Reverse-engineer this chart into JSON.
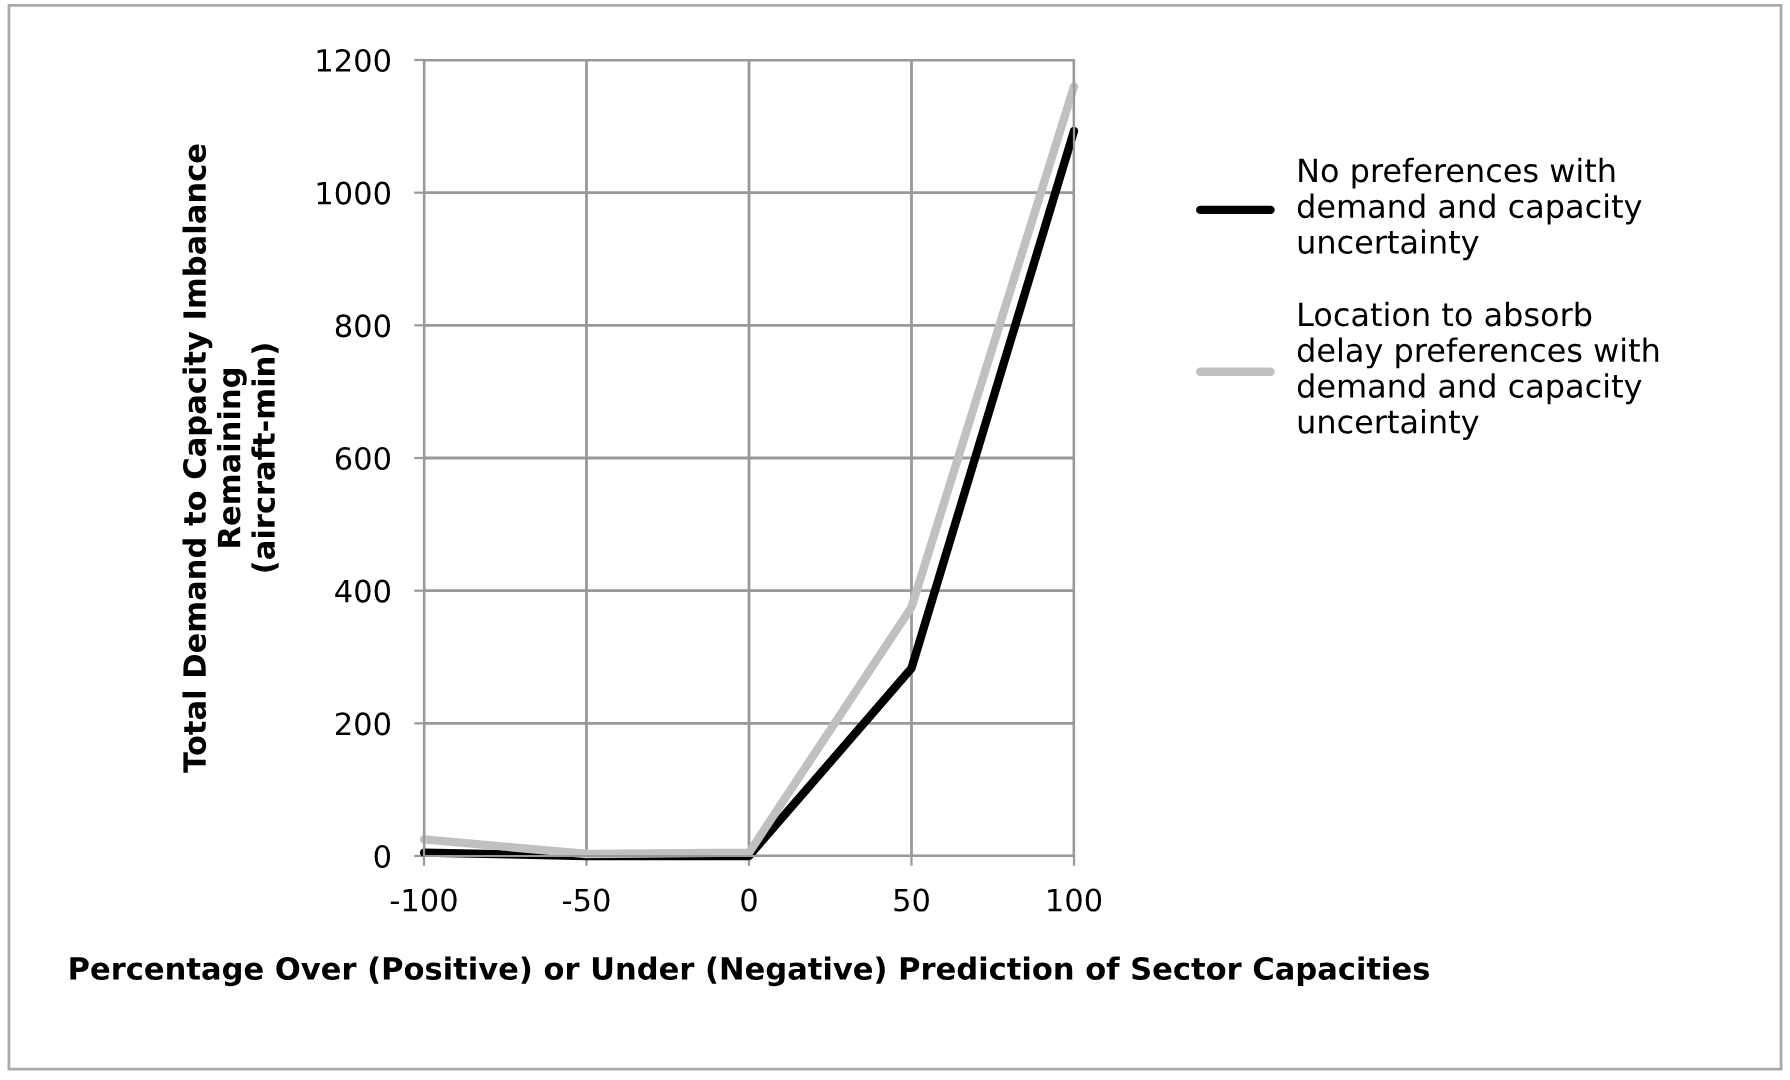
{
  "chart_data": {
    "type": "line",
    "xlabel": "Percentage Over (Positive) or Under (Negative) Prediction of Sector Capacities",
    "ylabel": "Total Demand to Capacity Imbalance\nRemaining\n(aircraft-min)",
    "x": [
      -100,
      -50,
      0,
      50,
      100
    ],
    "series": [
      {
        "name": "No preferences with\ndemand and capacity\nuncertainty",
        "color": "#000000",
        "values": [
          5,
          0,
          0,
          283,
          1093
        ]
      },
      {
        "name": "Location to absorb\ndelay preferences with\ndemand and capacity\nuncertainty",
        "color": "#c0c0c0",
        "values": [
          25,
          3,
          5,
          375,
          1160
        ]
      }
    ],
    "xlim": [
      -100,
      100
    ],
    "xticks": [
      -100,
      -50,
      0,
      50,
      100
    ],
    "ylim": [
      0,
      1200
    ],
    "yticks": [
      0,
      200,
      400,
      600,
      800,
      1000,
      1200
    ],
    "grid": true,
    "legend": "right",
    "marker": "none",
    "line_style": "solid"
  }
}
